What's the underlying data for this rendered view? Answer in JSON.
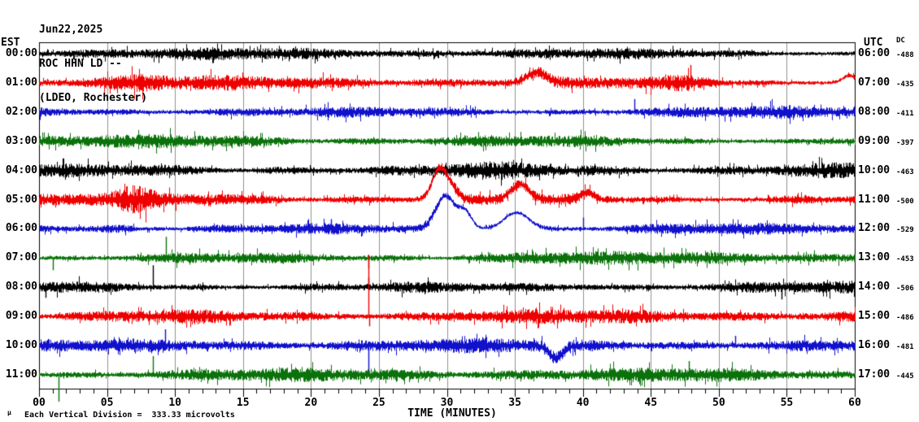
{
  "header": {
    "date": "Jun22,2025",
    "station_line": "ROC HHN LD --",
    "network_line": "(LDEO, Rochester)"
  },
  "axes": {
    "left_header": "EST",
    "right_header": "UTC",
    "dc_header": "DC",
    "x_title": "TIME (MINUTES)",
    "x_tick_labels": [
      "00",
      "05",
      "10",
      "15",
      "20",
      "25",
      "30",
      "35",
      "40",
      "45",
      "50",
      "55",
      "60"
    ],
    "minor_ticks_per_major": 5
  },
  "footer": {
    "mark": "µ",
    "note": "Each Vertical Division =  333.33 microvolts"
  },
  "colors": {
    "black": "#000000",
    "red": "#ee0000",
    "blue": "#1111cc",
    "green": "#0b720b",
    "grid": "#909090",
    "frame": "#000000"
  },
  "chart_data": {
    "type": "line",
    "subtype": "helicorder-seismogram",
    "x_unit": "minutes",
    "x_range": [
      0,
      60
    ],
    "grid": "vertical gridlines every 5 minutes",
    "legend_position": "none",
    "rows": [
      {
        "est": "00:00",
        "utc": "06:00",
        "dc": "-488",
        "color": "black",
        "noise_amp": 6.5,
        "seed": 101,
        "events": []
      },
      {
        "est": "01:00",
        "utc": "07:00",
        "dc": "-435",
        "color": "red",
        "noise_amp": 7.5,
        "seed": 202,
        "events": [
          {
            "type": "hump",
            "m": 36.6,
            "sigma": 0.7,
            "amp": 13
          },
          {
            "type": "burst",
            "m": 7.5,
            "sigma": 1.5,
            "mult": 0.5
          },
          {
            "type": "burst",
            "m": 47.8,
            "sigma": 1.2,
            "mult": 0.9
          },
          {
            "type": "spike",
            "m": 47.9,
            "amp": 22
          },
          {
            "type": "hump",
            "m": 59.6,
            "sigma": 0.5,
            "amp": 9
          }
        ]
      },
      {
        "est": "02:00",
        "utc": "08:00",
        "dc": "-411",
        "color": "blue",
        "noise_amp": 7.5,
        "seed": 303,
        "events": [
          {
            "type": "burst",
            "m": 13,
            "sigma": 2,
            "mult": 0.35
          },
          {
            "type": "spike",
            "m": 43.8,
            "amp": 16
          }
        ]
      },
      {
        "est": "03:00",
        "utc": "09:00",
        "dc": "-397",
        "color": "green",
        "noise_amp": 7.5,
        "seed": 404,
        "events": [
          {
            "type": "burst",
            "m": 30,
            "sigma": 12,
            "mult": 0.15
          }
        ]
      },
      {
        "est": "04:00",
        "utc": "10:00",
        "dc": "-463",
        "color": "black",
        "noise_amp": 9,
        "seed": 505,
        "events": [
          {
            "type": "burst",
            "m": 19,
            "sigma": 2.5,
            "mult": 0.45
          },
          {
            "type": "burst",
            "m": 33,
            "sigma": 3,
            "mult": 0.3
          }
        ]
      },
      {
        "est": "05:00",
        "utc": "11:00",
        "dc": "-500",
        "color": "red",
        "noise_amp": 7.5,
        "seed": 606,
        "events": [
          {
            "type": "burst",
            "m": 7,
            "sigma": 1.0,
            "mult": 0.9
          },
          {
            "type": "spike",
            "m": 7.3,
            "amp": -16
          },
          {
            "type": "hump",
            "m": 29.45,
            "sigma": 0.55,
            "amp": 38
          },
          {
            "type": "hump",
            "m": 30.4,
            "sigma": 0.5,
            "amp": 10
          },
          {
            "type": "hump",
            "m": 35.35,
            "sigma": 0.65,
            "amp": 19
          },
          {
            "type": "hump",
            "m": 40.3,
            "sigma": 0.5,
            "amp": 8
          },
          {
            "type": "burst",
            "m": 55,
            "sigma": 1.5,
            "mult": 0.5
          }
        ]
      },
      {
        "est": "06:00",
        "utc": "12:00",
        "dc": "-529",
        "color": "blue",
        "noise_amp": 7.5,
        "seed": 707,
        "events": [
          {
            "type": "burst",
            "m": 6,
            "sigma": 1.2,
            "mult": 0.5
          },
          {
            "type": "spike",
            "m": 21.5,
            "amp": 12
          },
          {
            "type": "hump",
            "m": 29.85,
            "sigma": 0.7,
            "amp": 40
          },
          {
            "type": "hump",
            "m": 31.3,
            "sigma": 0.5,
            "amp": 20
          },
          {
            "type": "hump",
            "m": 35.1,
            "sigma": 0.9,
            "amp": 20
          },
          {
            "type": "spike",
            "m": 40.0,
            "amp": 14
          }
        ]
      },
      {
        "est": "07:00",
        "utc": "13:00",
        "dc": "-453",
        "color": "green",
        "noise_amp": 7.5,
        "seed": 808,
        "events": [
          {
            "type": "spike",
            "m": 1.0,
            "amp": -15
          },
          {
            "type": "spike",
            "m": 9.35,
            "amp": 26
          },
          {
            "type": "spike",
            "m": 24.2,
            "amp": -13
          },
          {
            "type": "burst",
            "m": 36,
            "sigma": 2,
            "mult": 0.3
          }
        ]
      },
      {
        "est": "08:00",
        "utc": "14:00",
        "dc": "-506",
        "color": "black",
        "noise_amp": 7.5,
        "seed": 909,
        "events": [
          {
            "type": "spike",
            "m": 0.5,
            "amp": -13
          },
          {
            "type": "spike",
            "m": 8.4,
            "amp": 27
          },
          {
            "type": "spike",
            "m": 24.2,
            "amp": 12
          },
          {
            "type": "burst",
            "m": 40,
            "sigma": 2.5,
            "mult": 0.5
          },
          {
            "type": "spike",
            "m": 54.6,
            "amp": -15
          }
        ]
      },
      {
        "est": "09:00",
        "utc": "15:00",
        "dc": "-486",
        "color": "red",
        "noise_amp": 7.5,
        "seed": 1010,
        "events": [
          {
            "type": "burst",
            "m": 10,
            "sigma": 2,
            "mult": 0.25
          },
          {
            "type": "spike",
            "m": 24.2,
            "amp": 76
          },
          {
            "type": "spike",
            "m": 24.3,
            "amp": -12
          }
        ]
      },
      {
        "est": "10:00",
        "utc": "16:00",
        "dc": "-481",
        "color": "blue",
        "noise_amp": 7.5,
        "seed": 1111,
        "events": [
          {
            "type": "spike",
            "m": 9.3,
            "amp": 20
          },
          {
            "type": "spike",
            "m": 24.2,
            "amp": -34
          },
          {
            "type": "hump",
            "m": 38.0,
            "sigma": 0.5,
            "amp": -15
          },
          {
            "type": "spike",
            "m": 51.2,
            "amp": 12
          }
        ]
      },
      {
        "est": "11:00",
        "utc": "17:00",
        "dc": "-445",
        "color": "green",
        "noise_amp": 7.5,
        "seed": 1212,
        "events": [
          {
            "type": "spike",
            "m": 1.45,
            "amp": -33
          },
          {
            "type": "spike",
            "m": 8.4,
            "amp": 23
          },
          {
            "type": "spike",
            "m": 47.8,
            "amp": 17
          }
        ]
      }
    ]
  }
}
